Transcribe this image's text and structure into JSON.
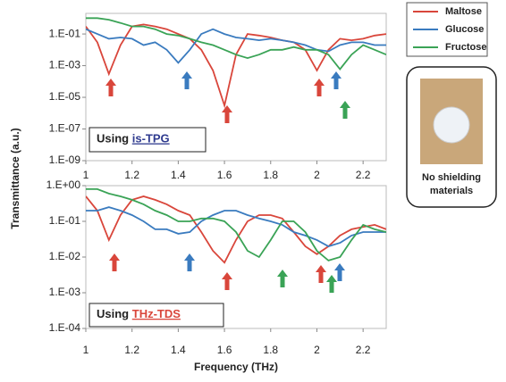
{
  "chart_data": [
    {
      "type": "line",
      "log_y": true,
      "y_label": "Transmittance (a.u.)",
      "panel_label": {
        "prefix": "Using",
        "method": "is-TPG",
        "method_color": "#2f3b8f"
      },
      "x": [
        1.0,
        1.05,
        1.1,
        1.15,
        1.2,
        1.25,
        1.3,
        1.35,
        1.4,
        1.45,
        1.5,
        1.55,
        1.6,
        1.65,
        1.7,
        1.75,
        1.8,
        1.85,
        1.9,
        1.95,
        2.0,
        2.05,
        2.1,
        2.15,
        2.2,
        2.25,
        2.3
      ],
      "xlim": [
        1,
        2.3
      ],
      "xticks": [
        1,
        1.2,
        1.4,
        1.6,
        1.8,
        2,
        2.2
      ],
      "ylim": [
        1e-09,
        2
      ],
      "yticks": [
        {
          "value": 1e-09,
          "label": "1.E-09"
        },
        {
          "value": 1e-07,
          "label": "1.E-07"
        },
        {
          "value": 1e-05,
          "label": "1.E-05"
        },
        {
          "value": 0.001,
          "label": "1.E-03"
        },
        {
          "value": 0.1,
          "label": "1.E-01"
        }
      ],
      "series": [
        {
          "name": "Maltose",
          "color": "#d9463b",
          "values": [
            0.3,
            0.03,
            0.0003,
            0.02,
            0.3,
            0.4,
            0.3,
            0.2,
            0.1,
            0.05,
            0.01,
            0.0005,
            3e-06,
            0.005,
            0.1,
            0.08,
            0.06,
            0.04,
            0.03,
            0.01,
            0.0005,
            0.01,
            0.05,
            0.04,
            0.05,
            0.08,
            0.1
          ]
        },
        {
          "name": "Glucose",
          "color": "#3a7bbf",
          "values": [
            0.2,
            0.1,
            0.05,
            0.06,
            0.05,
            0.02,
            0.03,
            0.01,
            0.0015,
            0.01,
            0.1,
            0.2,
            0.1,
            0.06,
            0.05,
            0.04,
            0.05,
            0.04,
            0.03,
            0.02,
            0.01,
            0.008,
            0.02,
            0.03,
            0.03,
            0.02,
            0.02
          ]
        },
        {
          "name": "Fructose",
          "color": "#3aa356",
          "values": [
            1,
            1,
            0.8,
            0.5,
            0.3,
            0.3,
            0.2,
            0.1,
            0.08,
            0.05,
            0.03,
            0.02,
            0.01,
            0.005,
            0.003,
            0.005,
            0.01,
            0.01,
            0.015,
            0.01,
            0.01,
            0.005,
            0.0006,
            0.005,
            0.02,
            0.01,
            0.005
          ]
        }
      ]
    },
    {
      "type": "line",
      "log_y": true,
      "x_label": "Frequency (THz)",
      "panel_label": {
        "prefix": "Using",
        "method": "THz-TDS",
        "method_color": "#d9463b"
      },
      "x": [
        1.0,
        1.05,
        1.1,
        1.15,
        1.2,
        1.25,
        1.3,
        1.35,
        1.4,
        1.45,
        1.5,
        1.55,
        1.6,
        1.65,
        1.7,
        1.75,
        1.8,
        1.85,
        1.9,
        1.95,
        2.0,
        2.05,
        2.1,
        2.15,
        2.2,
        2.25,
        2.3
      ],
      "xlim": [
        1,
        2.3
      ],
      "xticks": [
        1,
        1.2,
        1.4,
        1.6,
        1.8,
        2,
        2.2
      ],
      "ylim": [
        0.0001,
        1
      ],
      "yticks": [
        {
          "value": 0.0001,
          "label": "1.E-04"
        },
        {
          "value": 0.001,
          "label": "1.E-03"
        },
        {
          "value": 0.01,
          "label": "1.E-02"
        },
        {
          "value": 0.1,
          "label": "1.E-01"
        },
        {
          "value": 1,
          "label": "1.E+00"
        }
      ],
      "series": [
        {
          "color": "#d9463b",
          "values": [
            0.5,
            0.2,
            0.03,
            0.15,
            0.4,
            0.5,
            0.4,
            0.3,
            0.2,
            0.15,
            0.05,
            0.015,
            0.007,
            0.03,
            0.1,
            0.15,
            0.15,
            0.12,
            0.05,
            0.02,
            0.012,
            0.02,
            0.04,
            0.06,
            0.07,
            0.08,
            0.06
          ]
        },
        {
          "color": "#3a7bbf",
          "values": [
            0.2,
            0.2,
            0.25,
            0.2,
            0.15,
            0.1,
            0.06,
            0.06,
            0.045,
            0.05,
            0.1,
            0.15,
            0.2,
            0.2,
            0.15,
            0.12,
            0.1,
            0.08,
            0.05,
            0.04,
            0.03,
            0.02,
            0.025,
            0.04,
            0.05,
            0.05,
            0.05
          ]
        },
        {
          "color": "#3aa356",
          "values": [
            0.8,
            0.8,
            0.6,
            0.5,
            0.4,
            0.3,
            0.2,
            0.15,
            0.1,
            0.1,
            0.12,
            0.12,
            0.1,
            0.05,
            0.015,
            0.01,
            0.03,
            0.1,
            0.1,
            0.05,
            0.015,
            0.008,
            0.01,
            0.03,
            0.08,
            0.06,
            0.05
          ]
        }
      ]
    }
  ],
  "inset": {
    "caption": [
      "No shielding",
      "materials"
    ]
  }
}
